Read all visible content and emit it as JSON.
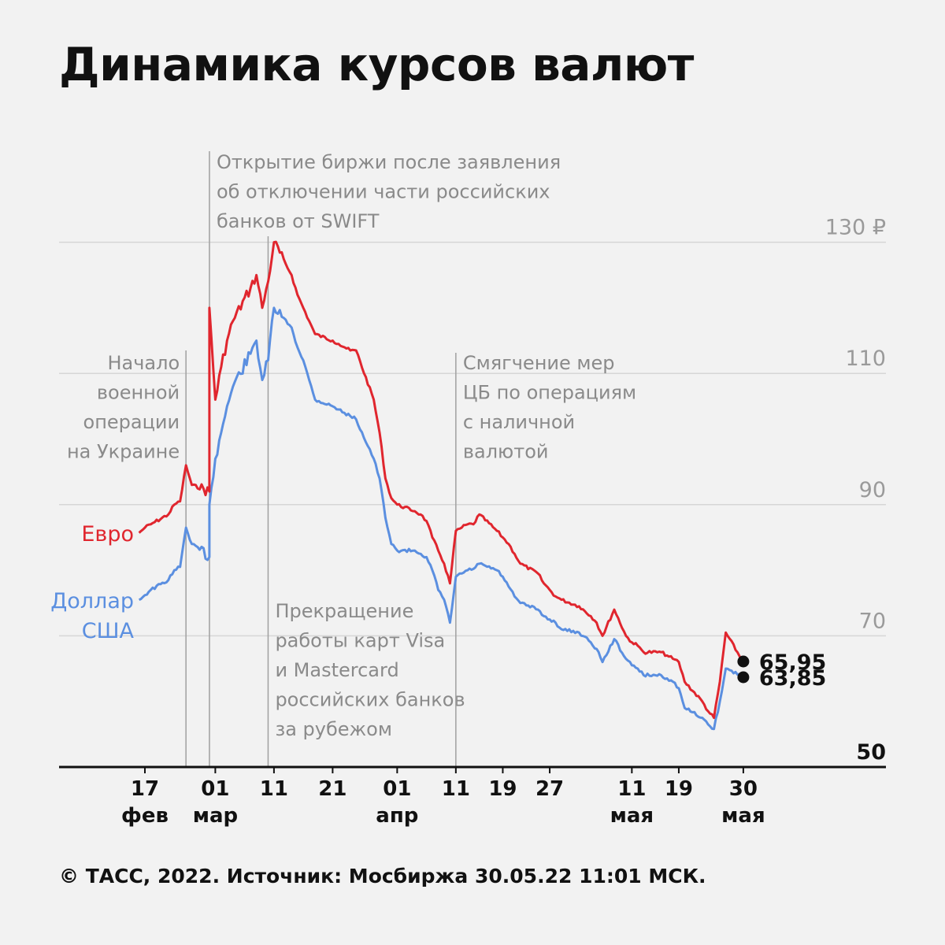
{
  "title": "Динамика курсов валют",
  "footer": "© ТАСС, 2022. Источник: Мосбиржа 30.05.22 11:01 МСК.",
  "colors": {
    "euro": "#e0262e",
    "usd": "#5b8fe0",
    "grid": "#d6d6d6",
    "annotation": "#8a8a8a",
    "axis": "#111111"
  },
  "chart_data": {
    "type": "line",
    "y_ticks": [
      {
        "value": 130,
        "label": "130 ₽"
      },
      {
        "value": 110,
        "label": "110"
      },
      {
        "value": 90,
        "label": "90"
      },
      {
        "value": 70,
        "label": "70"
      },
      {
        "value": 50,
        "label": "50"
      }
    ],
    "ylim": [
      50,
      130
    ],
    "x_ticks": [
      {
        "date": "2022-02-17",
        "day": "17",
        "month": "фев"
      },
      {
        "date": "2022-03-01",
        "day": "01",
        "month": "мар"
      },
      {
        "date": "2022-03-11",
        "day": "11",
        "month": ""
      },
      {
        "date": "2022-03-21",
        "day": "21",
        "month": ""
      },
      {
        "date": "2022-04-01",
        "day": "01",
        "month": "апр"
      },
      {
        "date": "2022-04-11",
        "day": "11",
        "month": ""
      },
      {
        "date": "2022-04-19",
        "day": "19",
        "month": ""
      },
      {
        "date": "2022-04-27",
        "day": "27",
        "month": ""
      },
      {
        "date": "2022-05-11",
        "day": "11",
        "month": "мая"
      },
      {
        "date": "2022-05-19",
        "day": "19",
        "month": ""
      },
      {
        "date": "2022-05-30",
        "day": "30",
        "month": "мая"
      }
    ],
    "series": [
      {
        "name": "Евро",
        "color": "#e0262e",
        "last_label": "65,95",
        "points": [
          [
            "2022-02-16",
            85.7
          ],
          [
            "2022-02-17",
            86.5
          ],
          [
            "2022-02-18",
            87.0
          ],
          [
            "2022-02-21",
            88.5
          ],
          [
            "2022-02-22",
            90.0
          ],
          [
            "2022-02-23",
            90.5
          ],
          [
            "2022-02-24",
            96.0
          ],
          [
            "2022-02-25",
            93.0
          ],
          [
            "2022-02-28",
            92.0
          ],
          [
            "2022-02-28",
            120.0
          ],
          [
            "2022-03-01",
            106.0
          ],
          [
            "2022-03-02",
            111.0
          ],
          [
            "2022-03-03",
            115.0
          ],
          [
            "2022-03-04",
            118.0
          ],
          [
            "2022-03-07",
            123.0
          ],
          [
            "2022-03-08",
            125.0
          ],
          [
            "2022-03-09",
            120.0
          ],
          [
            "2022-03-10",
            124.0
          ],
          [
            "2022-03-11",
            130.0
          ],
          [
            "2022-03-14",
            125.0
          ],
          [
            "2022-03-15",
            122.0
          ],
          [
            "2022-03-16",
            120.0
          ],
          [
            "2022-03-17",
            118.0
          ],
          [
            "2022-03-18",
            116.0
          ],
          [
            "2022-03-21",
            115.0
          ],
          [
            "2022-03-22",
            114.5
          ],
          [
            "2022-03-23",
            114.0
          ],
          [
            "2022-03-24",
            113.5
          ],
          [
            "2022-03-25",
            113.5
          ],
          [
            "2022-03-28",
            106.0
          ],
          [
            "2022-03-29",
            101.0
          ],
          [
            "2022-03-30",
            94.0
          ],
          [
            "2022-03-31",
            91.0
          ],
          [
            "2022-04-01",
            90.0
          ],
          [
            "2022-04-04",
            89.0
          ],
          [
            "2022-04-05",
            88.5
          ],
          [
            "2022-04-06",
            87.5
          ],
          [
            "2022-04-07",
            85.0
          ],
          [
            "2022-04-08",
            83.0
          ],
          [
            "2022-04-09",
            81.0
          ],
          [
            "2022-04-10",
            78.0
          ],
          [
            "2022-04-11",
            86.0
          ],
          [
            "2022-04-12",
            86.5
          ],
          [
            "2022-04-13",
            87.0
          ],
          [
            "2022-04-14",
            87.0
          ],
          [
            "2022-04-15",
            88.5
          ],
          [
            "2022-04-18",
            86.0
          ],
          [
            "2022-04-19",
            85.0
          ],
          [
            "2022-04-20",
            84.0
          ],
          [
            "2022-04-21",
            82.5
          ],
          [
            "2022-04-22",
            81.0
          ],
          [
            "2022-04-25",
            79.5
          ],
          [
            "2022-04-26",
            78.0
          ],
          [
            "2022-04-27",
            77.0
          ],
          [
            "2022-04-28",
            76.0
          ],
          [
            "2022-04-29",
            75.5
          ],
          [
            "2022-05-02",
            74.5
          ],
          [
            "2022-05-04",
            73.0
          ],
          [
            "2022-05-05",
            72.0
          ],
          [
            "2022-05-06",
            70.0
          ],
          [
            "2022-05-08",
            74.0
          ],
          [
            "2022-05-10",
            70.0
          ],
          [
            "2022-05-11",
            69.0
          ],
          [
            "2022-05-12",
            68.5
          ],
          [
            "2022-05-13",
            67.5
          ],
          [
            "2022-05-16",
            67.5
          ],
          [
            "2022-05-17",
            67.0
          ],
          [
            "2022-05-18",
            66.5
          ],
          [
            "2022-05-19",
            66.0
          ],
          [
            "2022-05-20",
            63.0
          ],
          [
            "2022-05-23",
            60.0
          ],
          [
            "2022-05-24",
            58.5
          ],
          [
            "2022-05-25",
            57.5
          ],
          [
            "2022-05-26",
            63.0
          ],
          [
            "2022-05-27",
            70.5
          ],
          [
            "2022-05-30",
            65.95
          ]
        ]
      },
      {
        "name": "Доллар США",
        "color": "#5b8fe0",
        "last_label": "63,85",
        "points": [
          [
            "2022-02-16",
            75.5
          ],
          [
            "2022-02-17",
            76.2
          ],
          [
            "2022-02-18",
            77.0
          ],
          [
            "2022-02-21",
            78.5
          ],
          [
            "2022-02-22",
            80.0
          ],
          [
            "2022-02-23",
            80.5
          ],
          [
            "2022-02-24",
            86.5
          ],
          [
            "2022-02-25",
            84.0
          ],
          [
            "2022-02-28",
            82.0
          ],
          [
            "2022-02-28",
            90.0
          ],
          [
            "2022-03-01",
            97.0
          ],
          [
            "2022-03-02",
            101.0
          ],
          [
            "2022-03-03",
            105.0
          ],
          [
            "2022-03-04",
            108.0
          ],
          [
            "2022-03-07",
            113.0
          ],
          [
            "2022-03-08",
            115.0
          ],
          [
            "2022-03-09",
            109.0
          ],
          [
            "2022-03-10",
            112.0
          ],
          [
            "2022-03-11",
            120.0
          ],
          [
            "2022-03-14",
            117.0
          ],
          [
            "2022-03-15",
            114.0
          ],
          [
            "2022-03-16",
            112.0
          ],
          [
            "2022-03-17",
            109.0
          ],
          [
            "2022-03-18",
            106.0
          ],
          [
            "2022-03-21",
            105.0
          ],
          [
            "2022-03-22",
            104.5
          ],
          [
            "2022-03-23",
            104.0
          ],
          [
            "2022-03-24",
            103.5
          ],
          [
            "2022-03-25",
            103.0
          ],
          [
            "2022-03-28",
            97.0
          ],
          [
            "2022-03-29",
            94.0
          ],
          [
            "2022-03-30",
            88.0
          ],
          [
            "2022-03-31",
            84.0
          ],
          [
            "2022-04-01",
            83.0
          ],
          [
            "2022-04-04",
            83.0
          ],
          [
            "2022-04-05",
            82.5
          ],
          [
            "2022-04-06",
            82.0
          ],
          [
            "2022-04-07",
            80.0
          ],
          [
            "2022-04-08",
            77.0
          ],
          [
            "2022-04-09",
            75.5
          ],
          [
            "2022-04-10",
            72.0
          ],
          [
            "2022-04-11",
            79.0
          ],
          [
            "2022-04-12",
            79.5
          ],
          [
            "2022-04-13",
            80.0
          ],
          [
            "2022-04-14",
            80.2
          ],
          [
            "2022-04-15",
            81.0
          ],
          [
            "2022-04-18",
            80.0
          ],
          [
            "2022-04-19",
            79.0
          ],
          [
            "2022-04-20",
            77.5
          ],
          [
            "2022-04-21",
            76.0
          ],
          [
            "2022-04-22",
            75.0
          ],
          [
            "2022-04-25",
            74.0
          ],
          [
            "2022-04-26",
            73.0
          ],
          [
            "2022-04-27",
            72.5
          ],
          [
            "2022-04-28",
            72.0
          ],
          [
            "2022-04-29",
            71.0
          ],
          [
            "2022-05-02",
            70.5
          ],
          [
            "2022-05-04",
            69.0
          ],
          [
            "2022-05-05",
            68.0
          ],
          [
            "2022-05-06",
            66.0
          ],
          [
            "2022-05-08",
            69.5
          ],
          [
            "2022-05-10",
            66.5
          ],
          [
            "2022-05-11",
            65.5
          ],
          [
            "2022-05-12",
            65.0
          ],
          [
            "2022-05-13",
            64.0
          ],
          [
            "2022-05-16",
            64.0
          ],
          [
            "2022-05-17",
            63.5
          ],
          [
            "2022-05-18",
            63.0
          ],
          [
            "2022-05-19",
            62.0
          ],
          [
            "2022-05-20",
            59.0
          ],
          [
            "2022-05-23",
            57.5
          ],
          [
            "2022-05-24",
            56.5
          ],
          [
            "2022-05-25",
            55.8
          ],
          [
            "2022-05-26",
            60.0
          ],
          [
            "2022-05-27",
            65.0
          ],
          [
            "2022-05-30",
            63.85
          ]
        ]
      }
    ],
    "annotations": [
      {
        "date": "2022-02-24",
        "lines": [
          "Начало",
          "военной",
          "операции",
          "на Украине"
        ]
      },
      {
        "date": "2022-02-28",
        "lines": [
          "Открытие биржи после заявления",
          "об отключении части российских",
          "банков от SWIFT"
        ]
      },
      {
        "date": "2022-03-10",
        "lines": [
          "Прекращение",
          "работы карт Visa",
          "и Mastercard",
          "российских банков",
          "за рубежом"
        ]
      },
      {
        "date": "2022-04-11",
        "lines": [
          "Смягчение мер",
          "ЦБ по операциям",
          "с наличной",
          "валютой"
        ]
      }
    ]
  }
}
